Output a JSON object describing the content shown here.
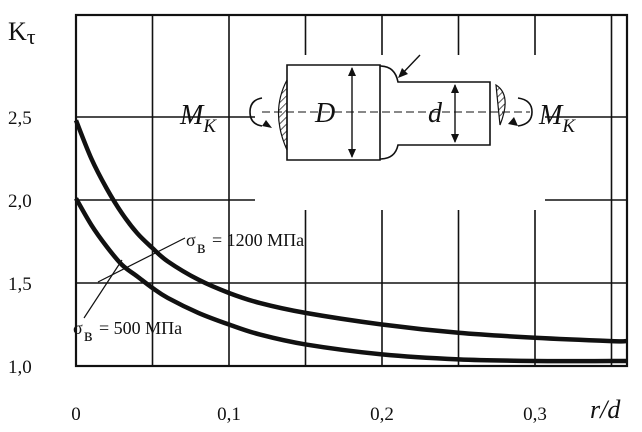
{
  "chart_data": {
    "type": "line",
    "ylabel": "K",
    "ylabel_sub": "τ",
    "xlabel": "r/d",
    "xlim": [
      0,
      0.37
    ],
    "ylim": [
      1.0,
      2.5
    ],
    "x_ticks": [
      0,
      0.1,
      0.2,
      0.3
    ],
    "x_tick_labels": [
      "0",
      "0,1",
      "0,2",
      "0,3"
    ],
    "y_ticks": [
      1.0,
      1.5,
      2.0,
      2.5
    ],
    "y_tick_labels": [
      "1,0",
      "1,5",
      "2,0",
      "2,5"
    ],
    "grid": true,
    "series": [
      {
        "name": "σв = 1200 МПа",
        "label_sigma": "σ",
        "label_sub": "в",
        "label_rest": "= 1200 МПа",
        "x": [
          0,
          0.01,
          0.02,
          0.03,
          0.04,
          0.05,
          0.06,
          0.08,
          0.1,
          0.12,
          0.15,
          0.2,
          0.25,
          0.3,
          0.35,
          0.37
        ],
        "y": [
          2.48,
          2.25,
          2.07,
          1.92,
          1.8,
          1.71,
          1.63,
          1.52,
          1.44,
          1.38,
          1.32,
          1.25,
          1.2,
          1.17,
          1.15,
          1.15
        ]
      },
      {
        "name": "σв = 500 МПа",
        "label_sigma": "σ",
        "label_sub": "в",
        "label_rest": "= 500 МПа",
        "x": [
          0,
          0.01,
          0.02,
          0.03,
          0.04,
          0.05,
          0.06,
          0.08,
          0.1,
          0.12,
          0.15,
          0.2,
          0.25,
          0.3,
          0.35,
          0.37
        ],
        "y": [
          2.01,
          1.85,
          1.72,
          1.61,
          1.54,
          1.47,
          1.41,
          1.32,
          1.25,
          1.19,
          1.13,
          1.07,
          1.04,
          1.03,
          1.03,
          1.03
        ]
      }
    ],
    "inset": {
      "moment_left": "M",
      "moment_left_sub": "K",
      "moment_right": "M",
      "moment_right_sub": "K",
      "big_diameter": "D",
      "small_diameter": "d"
    }
  }
}
